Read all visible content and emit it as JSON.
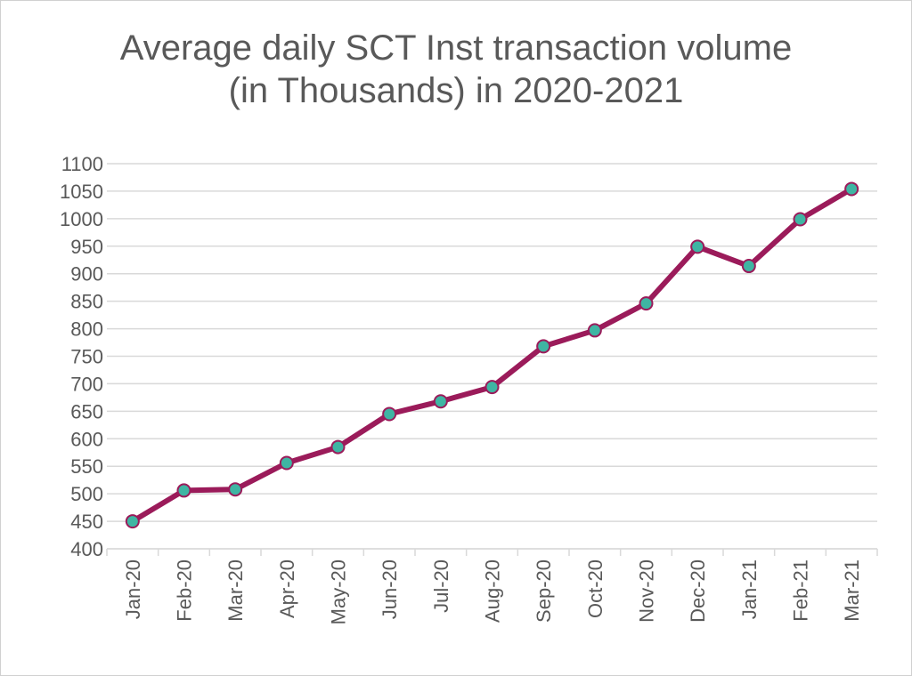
{
  "chart_data": {
    "type": "line",
    "title": "Average daily SCT Inst transaction volume (in Thousands) in 2020-2021",
    "categories": [
      "Jan-20",
      "Feb-20",
      "Mar-20",
      "Apr-20",
      "May-20",
      "Jun-20",
      "Jul-20",
      "Aug-20",
      "Sep-20",
      "Oct-20",
      "Nov-20",
      "Dec-20",
      "Jan-21",
      "Feb-21",
      "Mar-21"
    ],
    "series": [
      {
        "name": "SCT Inst",
        "color": "#9b1b5a",
        "marker_color": "#3fb5a3",
        "values": [
          450,
          506,
          508,
          556,
          585,
          645,
          668,
          694,
          768,
          797,
          846,
          949,
          914,
          999,
          1054
        ]
      }
    ],
    "ylim": [
      400,
      1100
    ],
    "yticks": [
      400,
      450,
      500,
      550,
      600,
      650,
      700,
      750,
      800,
      850,
      900,
      950,
      1000,
      1050,
      1100
    ],
    "grid": true
  }
}
